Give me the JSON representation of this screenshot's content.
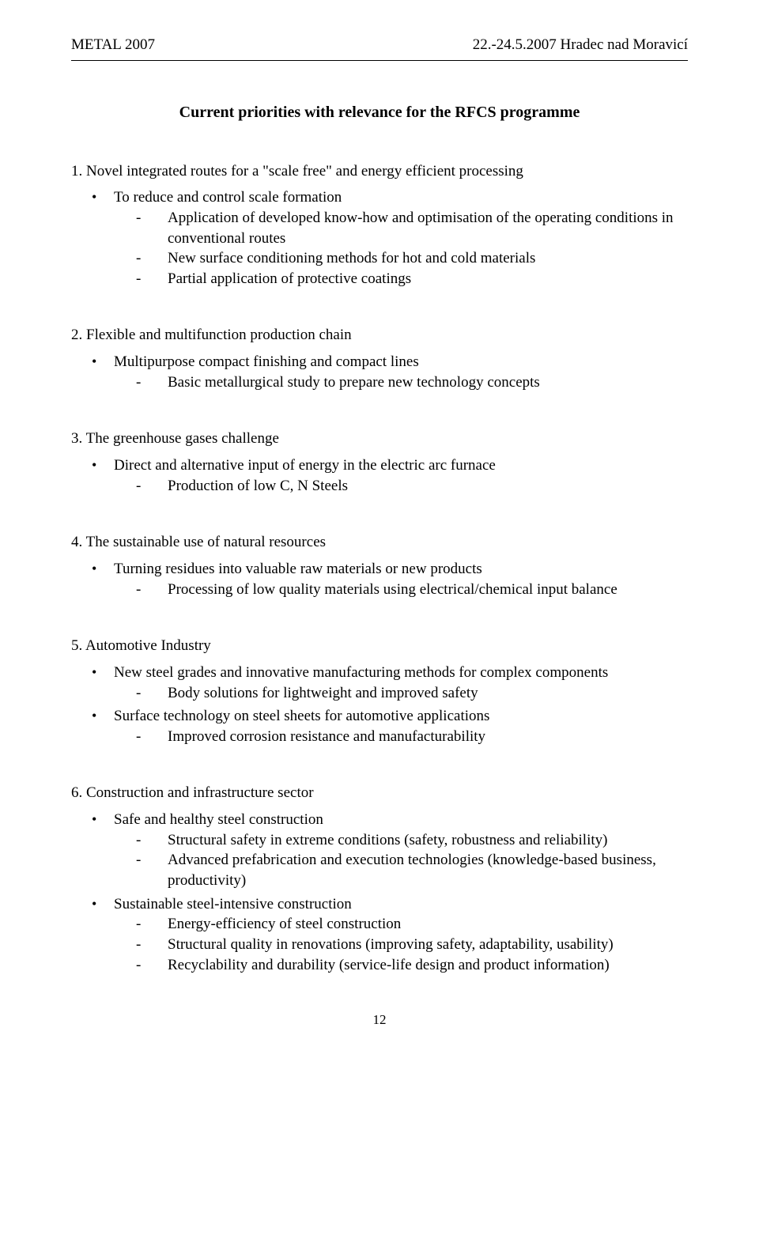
{
  "header_left": "METAL 2007",
  "header_right": "22.-24.5.2007 Hradec nad Moravicí",
  "title": "Current priorities with relevance for the RFCS programme",
  "page_number": "12",
  "sections": [
    {
      "num": "1.",
      "title": "Novel integrated routes for a \"scale free\" and energy efficient processing",
      "bullets": [
        {
          "text": "To reduce and control scale formation",
          "dashes": [
            "Application of developed know-how and optimisation of the operating conditions in conventional routes",
            "New surface conditioning methods for hot and cold materials",
            "Partial application of protective coatings"
          ]
        }
      ]
    },
    {
      "num": "2.",
      "title": "Flexible and multifunction production chain",
      "bullets": [
        {
          "text": "Multipurpose compact finishing and compact lines",
          "dashes": [
            "Basic metallurgical study to prepare new technology concepts"
          ]
        }
      ]
    },
    {
      "num": "3.",
      "title": "The greenhouse gases challenge",
      "bullets": [
        {
          "text": "Direct and alternative input of energy in the electric arc furnace",
          "dashes": [
            "Production of low C, N Steels"
          ]
        }
      ]
    },
    {
      "num": "4.",
      "title": "The sustainable use of natural resources",
      "bullets": [
        {
          "text": "Turning residues into valuable raw materials or new products",
          "dashes": [
            "Processing of low quality materials using electrical/chemical input balance"
          ]
        }
      ]
    },
    {
      "num": "5.",
      "title": "Automotive Industry",
      "bullets": [
        {
          "text": "New steel grades and innovative manufacturing methods for complex components",
          "dashes": [
            "Body solutions for lightweight and improved safety"
          ]
        },
        {
          "text": "Surface technology on steel sheets for automotive applications",
          "dashes": [
            "Improved corrosion resistance and manufacturability"
          ]
        }
      ]
    },
    {
      "num": "6.",
      "title": "Construction and infrastructure sector",
      "bullets": [
        {
          "text": "Safe and healthy steel construction",
          "dashes": [
            "Structural safety in extreme conditions (safety, robustness and reliability)",
            "Advanced prefabrication and execution technologies (knowledge-based business, productivity)"
          ]
        },
        {
          "text": "Sustainable steel-intensive construction",
          "dashes": [
            "Energy-efficiency of steel construction",
            "Structural quality in renovations (improving safety, adaptability, usability)",
            "Recyclability and durability (service-life design and product information)"
          ]
        }
      ]
    }
  ]
}
